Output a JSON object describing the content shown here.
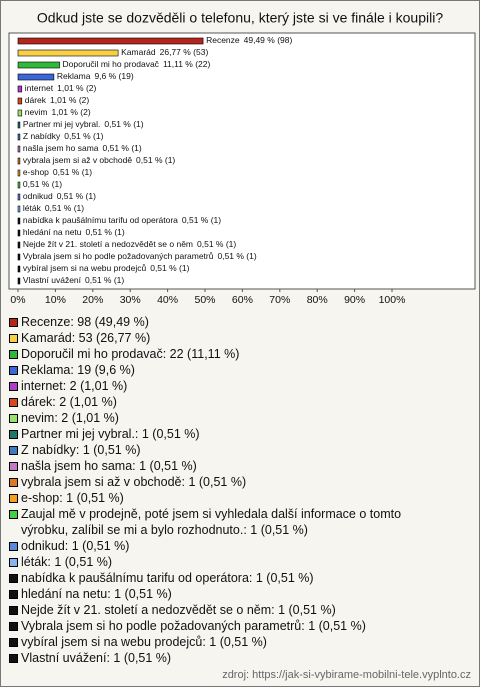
{
  "chart_data": {
    "type": "bar",
    "orientation": "horizontal",
    "title": "Odkud jste se dozvěděli o telefonu, který jste si ve finále i koupili?",
    "categories": [
      "Recenze",
      "Kamarád",
      "Doporučil mi ho prodavač",
      "Reklama",
      "internet",
      "dárek",
      "nevim",
      "Partner mi jej vybral.",
      "Z nabídky",
      "našla jsem ho sama",
      "vybrala jsem si až v obchodě",
      "e-shop",
      null,
      "odnikud",
      "léták",
      "nabídka k paušálnímu tarifu od operátora",
      "hledání na netu",
      "Nejde žít v 21. století a nedozvědět se o něm",
      "Vybrala jsem si ho podle požadovaných parametrů",
      "vybíral jsem si na webu prodejců",
      "Vlastní uvážení"
    ],
    "values": [
      49.49,
      26.77,
      11.11,
      9.6,
      1.01,
      1.01,
      1.01,
      0.51,
      0.51,
      0.51,
      0.51,
      0.51,
      0.51,
      0.51,
      0.51,
      0.51,
      0.51,
      0.51,
      0.51,
      0.51,
      0.51
    ],
    "value_labels": [
      "49,49 % (98)",
      "26,77 % (53)",
      "11,11 % (22)",
      "9,6 % (19)",
      "1,01 % (2)",
      "1,01 % (2)",
      "1,01 % (2)",
      "0,51 % (1)",
      "0,51 % (1)",
      "0,51 % (1)",
      "0,51 % (1)",
      "0,51 % (1)",
      "0,51 % (1)",
      "0,51 % (1)",
      "0,51 % (1)",
      "0,51 % (1)",
      "0,51 % (1)",
      "0,51 % (1)",
      "0,51 % (1)",
      "0,51 % (1)",
      "0,51 % (1)"
    ],
    "colors": [
      "#b3261e",
      "#f7d046",
      "#2fb83a",
      "#3a66d6",
      "#b23cc6",
      "#d9481c",
      "#9be06a",
      "#1e7a66",
      "#3f7ac0",
      "#c07ac8",
      "#d97a24",
      "#f0a21e",
      "#43d043",
      "#5a86dc",
      "#86b4f0",
      "#111111",
      "#111111",
      "#111111",
      "#111111",
      "#111111",
      "#111111"
    ],
    "legend": [
      "Recenze: 98 (49,49 %)",
      "Kamarád: 53 (26,77 %)",
      "Doporučil mi ho prodavač: 22 (11,11 %)",
      "Reklama: 19 (9,6 %)",
      "internet: 2 (1,01 %)",
      "dárek: 2 (1,01 %)",
      "nevim: 2 (1,01 %)",
      "Partner mi jej vybral.: 1 (0,51 %)",
      "Z nabídky: 1 (0,51 %)",
      "našla jsem ho sama: 1 (0,51 %)",
      "vybrala jsem si až v obchodě: 1 (0,51 %)",
      "e-shop: 1 (0,51 %)",
      "Zaujal mě v prodejně, poté jsem si vyhledala další informace o tomto výrobku, zalíbil se mi a bylo rozhodnuto.: 1 (0,51 %)",
      "odnikud: 1 (0,51 %)",
      "léták: 1 (0,51 %)",
      "nabídka k paušálnímu tarifu od operátora: 1 (0,51 %)",
      "hledání na netu: 1 (0,51 %)",
      "Nejde žít v 21. století a nedozvědět se o něm: 1 (0,51 %)",
      "Vybrala jsem si ho podle požadovaných parametrů: 1 (0,51 %)",
      "vybíral jsem si na webu prodejců: 1 (0,51 %)",
      "Vlastní uvážení: 1 (0,51 %)"
    ],
    "xlim": [
      0,
      100
    ],
    "xticks": [
      {
        "value": 0,
        "label": "0%"
      },
      {
        "value": 10,
        "label": "10%"
      },
      {
        "value": 20,
        "label": "20%"
      },
      {
        "value": 30,
        "label": "30%"
      },
      {
        "value": 40,
        "label": "40%"
      },
      {
        "value": 50,
        "label": "50%"
      },
      {
        "value": 60,
        "label": "60%"
      },
      {
        "value": 70,
        "label": "70%"
      },
      {
        "value": 80,
        "label": "80%"
      },
      {
        "value": 90,
        "label": "90%"
      },
      {
        "value": 100,
        "label": "100%"
      }
    ],
    "source": "zdroj: https://jak-si-vybirame-mobilni-tele.vyplnto.cz"
  }
}
